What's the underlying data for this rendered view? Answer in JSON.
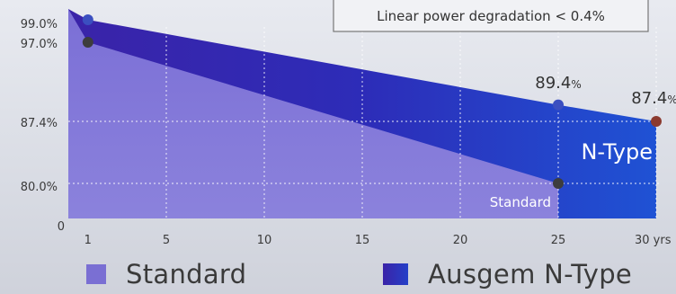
{
  "chart_data": {
    "type": "area",
    "x": [
      1,
      25,
      30
    ],
    "x_ticks": [
      "1",
      "5",
      "10",
      "15",
      "20",
      "25",
      "30 yrs"
    ],
    "x_tick_values": [
      1,
      5,
      10,
      15,
      20,
      25,
      30
    ],
    "y_ticks": [
      "0",
      "80.0%",
      "87.4%",
      "97.0%",
      "99.0%"
    ],
    "y_tick_values": [
      0,
      80.0,
      87.4,
      97.0,
      99.0
    ],
    "series": [
      {
        "name": "Standard",
        "points": [
          [
            0,
            100
          ],
          [
            1,
            97.0
          ],
          [
            25,
            80.0
          ]
        ],
        "color": "#7a6fd3",
        "marker_color": "#3d3d3d",
        "end_label": "Standard"
      },
      {
        "name": "Ausgem N-Type",
        "points": [
          [
            0,
            100
          ],
          [
            1,
            99.0
          ],
          [
            25,
            89.4
          ],
          [
            30,
            87.4
          ]
        ],
        "color": "#2a2fb8",
        "marker_color": "#3b4fc0",
        "end_marker_color": "#8b3a2f",
        "end_label": "N-Type"
      }
    ],
    "data_labels": [
      {
        "x": 25,
        "value": "89.4",
        "unit": "%"
      },
      {
        "x": 30,
        "value": "87.4",
        "unit": "%"
      }
    ],
    "annotation": "Linear power degradation < 0.4%",
    "grid": true,
    "legend_position": "bottom",
    "legend": [
      {
        "label": "Standard",
        "color": "#7a6fd3"
      },
      {
        "label": "Ausgem N-Type",
        "color": "#3a2fb0"
      }
    ]
  }
}
